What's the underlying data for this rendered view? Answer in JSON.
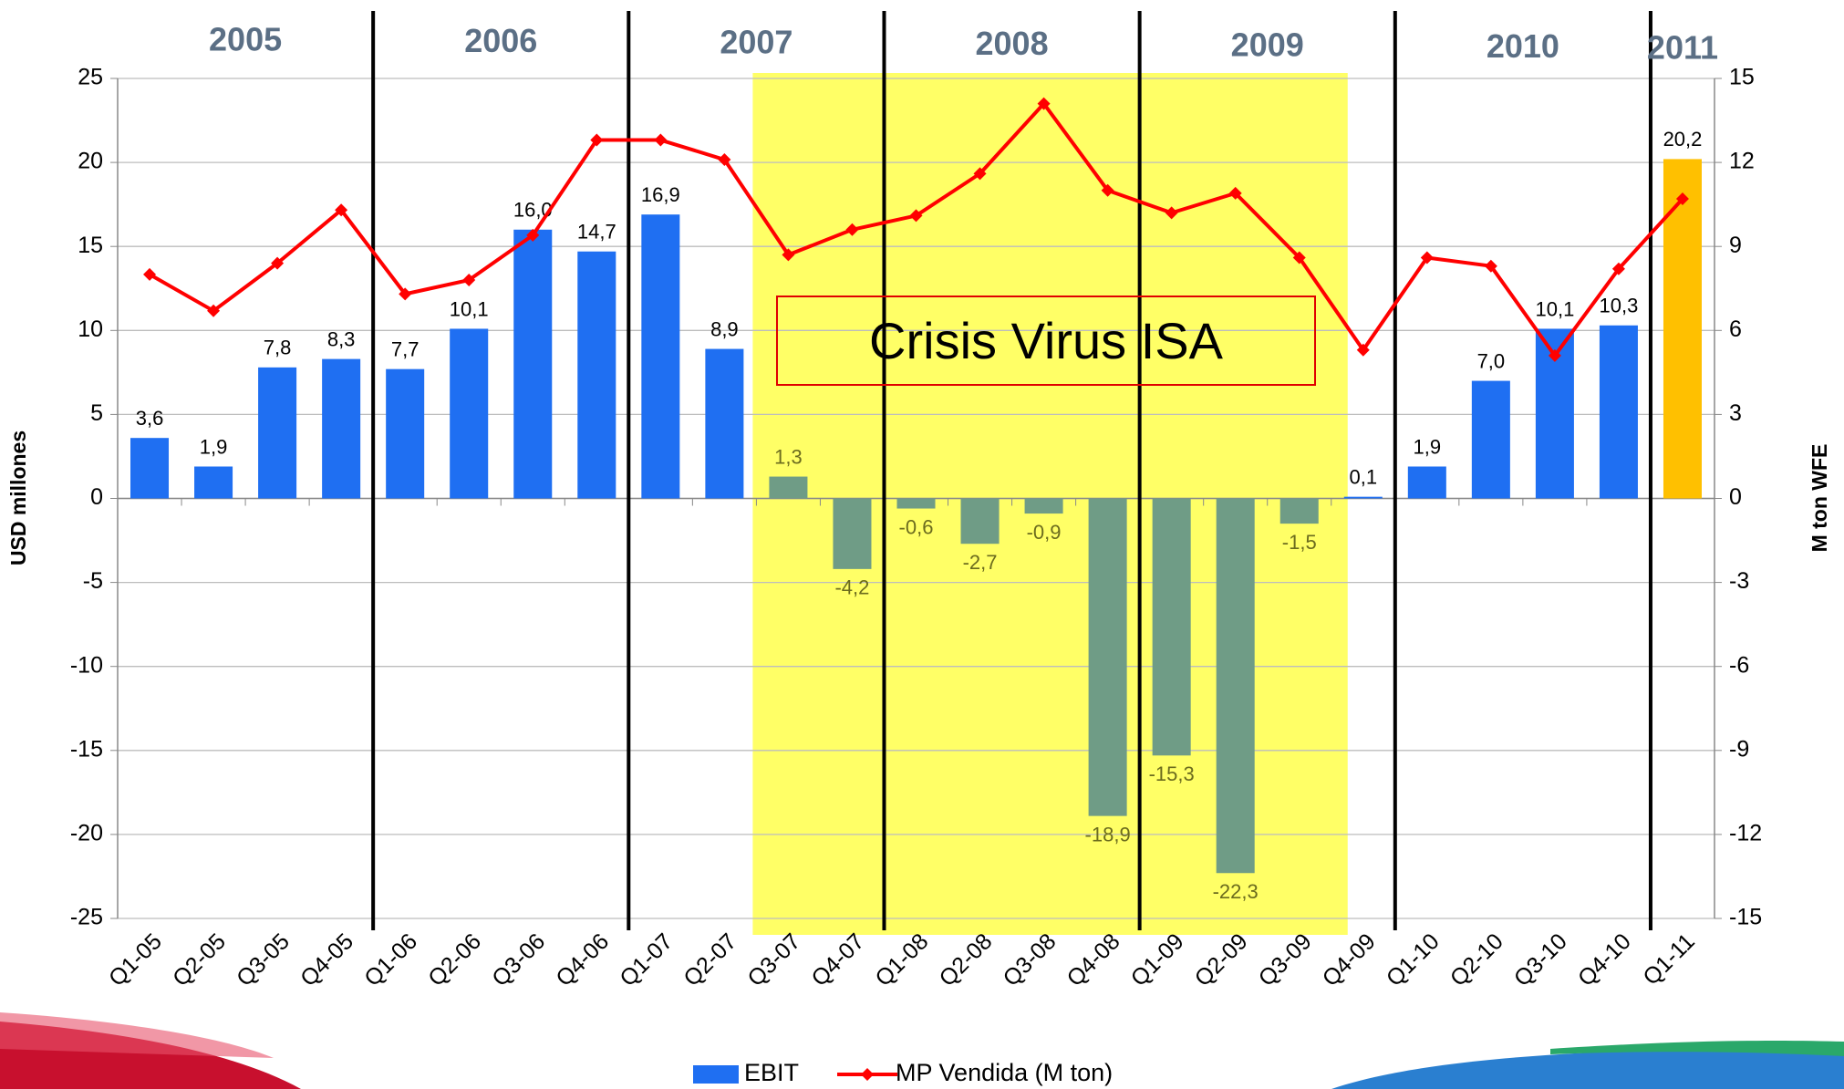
{
  "chart_data": {
    "type": "bar",
    "categories": [
      "Q1-05",
      "Q2-05",
      "Q3-05",
      "Q4-05",
      "Q1-06",
      "Q2-06",
      "Q3-06",
      "Q4-06",
      "Q1-07",
      "Q2-07",
      "Q3-07",
      "Q4-07",
      "Q1-08",
      "Q2-08",
      "Q3-08",
      "Q4-08",
      "Q1-09",
      "Q2-09",
      "Q3-09",
      "Q4-09",
      "Q1-10",
      "Q2-10",
      "Q3-10",
      "Q4-10",
      "Q1-11"
    ],
    "periods": [
      "2005",
      "2006",
      "2007",
      "2008",
      "2009",
      "2010",
      "2011"
    ],
    "highlight": {
      "label": "Crisis Virus ISA",
      "from": "Q3-07",
      "to": "Q3-09",
      "color": "#ffff66"
    },
    "y_label": "USD millones",
    "y2_label": "M ton WFE",
    "ylim": [
      -25,
      25
    ],
    "yticks": [
      -25,
      -20,
      -15,
      -10,
      -5,
      0,
      5,
      10,
      15,
      20,
      25
    ],
    "y2lim": [
      -15,
      15
    ],
    "y2ticks": [
      -15,
      -12,
      -9,
      -6,
      -3,
      0,
      3,
      6,
      9,
      12,
      15
    ],
    "grid": true,
    "legend": "bottom",
    "series": [
      {
        "name": "EBIT",
        "type": "bar",
        "color": "#1f6ff2",
        "colors": [
          "#1f6ff2",
          "#1f6ff2",
          "#1f6ff2",
          "#1f6ff2",
          "#1f6ff2",
          "#1f6ff2",
          "#1f6ff2",
          "#1f6ff2",
          "#1f6ff2",
          "#1f6ff2",
          "#6f9c86",
          "#6f9c86",
          "#6f9c86",
          "#6f9c86",
          "#6f9c86",
          "#6f9c86",
          "#6f9c86",
          "#6f9c86",
          "#6f9c86",
          "#1f6ff2",
          "#1f6ff2",
          "#1f6ff2",
          "#1f6ff2",
          "#1f6ff2",
          "#ffc000"
        ],
        "values": [
          3.6,
          1.9,
          7.8,
          8.3,
          7.7,
          10.1,
          16.0,
          14.7,
          16.9,
          8.9,
          1.3,
          -4.2,
          -0.6,
          -2.7,
          -0.9,
          -18.9,
          -15.3,
          -22.3,
          -1.5,
          0.1,
          1.9,
          7.0,
          10.1,
          10.3,
          20.2
        ],
        "value_labels": [
          "3,6",
          "1,9",
          "7,8",
          "8,3",
          "7,7",
          "10,1",
          "16,0",
          "14,7",
          "16,9",
          "8,9",
          "1,3",
          "-4,2",
          "-0,6",
          "-2,7",
          "-0,9",
          "-18,9",
          "-15,3",
          "-22,3",
          "-1,5",
          "0,1",
          "1,9",
          "7,0",
          "10,1",
          "10,3",
          "20,2"
        ]
      },
      {
        "name": "MP Vendida (M ton)",
        "type": "line",
        "axis": "y2",
        "color": "#ff0000",
        "values": [
          8.0,
          6.7,
          8.4,
          10.3,
          7.3,
          7.8,
          9.4,
          12.8,
          12.8,
          12.1,
          8.7,
          9.6,
          10.1,
          11.6,
          14.1,
          11.0,
          10.2,
          10.9,
          8.6,
          5.3,
          8.6,
          8.3,
          5.1,
          8.2,
          10.7
        ]
      }
    ]
  }
}
